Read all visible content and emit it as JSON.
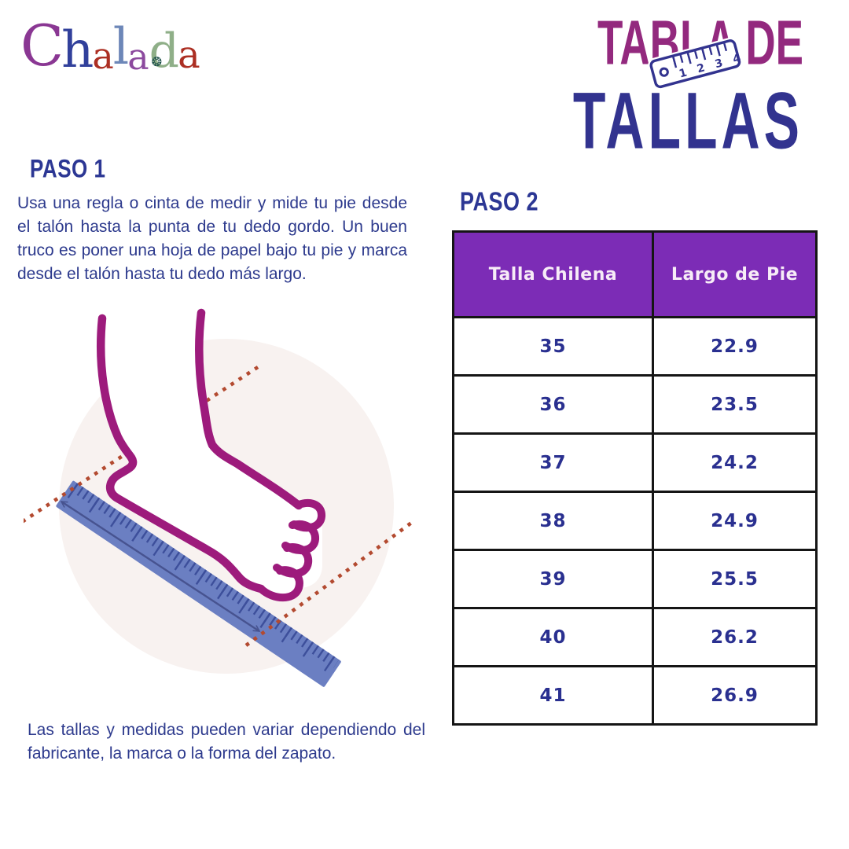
{
  "brand": {
    "name": "Chalada",
    "flower_glyph": "❂",
    "letters": [
      {
        "ch": "C",
        "color": "#8a3793"
      },
      {
        "ch": "h",
        "color": "#31409b"
      },
      {
        "ch": "a",
        "color": "#ac2f23"
      },
      {
        "ch": "l",
        "color": "#6d87b8"
      },
      {
        "ch": "a",
        "color": "#8c4a9e"
      },
      {
        "ch": "d",
        "color": "#8faf88"
      },
      {
        "ch": "a",
        "color": "#ac2f23"
      }
    ]
  },
  "title": {
    "line1": "TABLA DE",
    "line2": "TALLAS",
    "ruler_numbers": "1 2 3 4"
  },
  "step1": {
    "heading": "PASO 1",
    "body": "Usa una regla o cinta de medir y mide tu pie desde el talón hasta la punta de tu dedo gordo. Un buen truco es poner una hoja de papel bajo tu pie y marca desde el talón hasta tu dedo más largo."
  },
  "step2": {
    "heading": "PASO 2"
  },
  "size_table": {
    "headers": [
      "Talla Chilena",
      "Largo de Pie"
    ],
    "rows": [
      [
        "35",
        "22.9"
      ],
      [
        "36",
        "23.5"
      ],
      [
        "37",
        "24.2"
      ],
      [
        "38",
        "24.9"
      ],
      [
        "39",
        "25.5"
      ],
      [
        "40",
        "26.2"
      ],
      [
        "41",
        "26.9"
      ]
    ]
  },
  "footnote": "Las tallas y medidas pueden variar dependiendo del fabricante, la marca o la forma del zapato.",
  "colors": {
    "title_magenta": "#93297e",
    "title_navy": "#32338f",
    "heading_navy": "#2c3794",
    "body_navy": "#2d3a8d",
    "table_header_bg": "#7c2cb6",
    "table_header_text": "#f7ecf7",
    "cell_text": "#2a3090",
    "foot_outline": "#9d1b7c",
    "ruler_fill": "#6b7fc2",
    "ruler_ticks": "#3d4f9b",
    "dotted_line": "#b34a30",
    "circle_bg": "#f8f2f0",
    "arrow": "#475390"
  },
  "chart_data": {
    "type": "table",
    "title": "Tabla de Tallas",
    "columns": [
      "Talla Chilena",
      "Largo de Pie"
    ],
    "rows": [
      [
        35,
        22.9
      ],
      [
        36,
        23.5
      ],
      [
        37,
        24.2
      ],
      [
        38,
        24.9
      ],
      [
        39,
        25.5
      ],
      [
        40,
        26.2
      ],
      [
        41,
        26.9
      ]
    ]
  }
}
